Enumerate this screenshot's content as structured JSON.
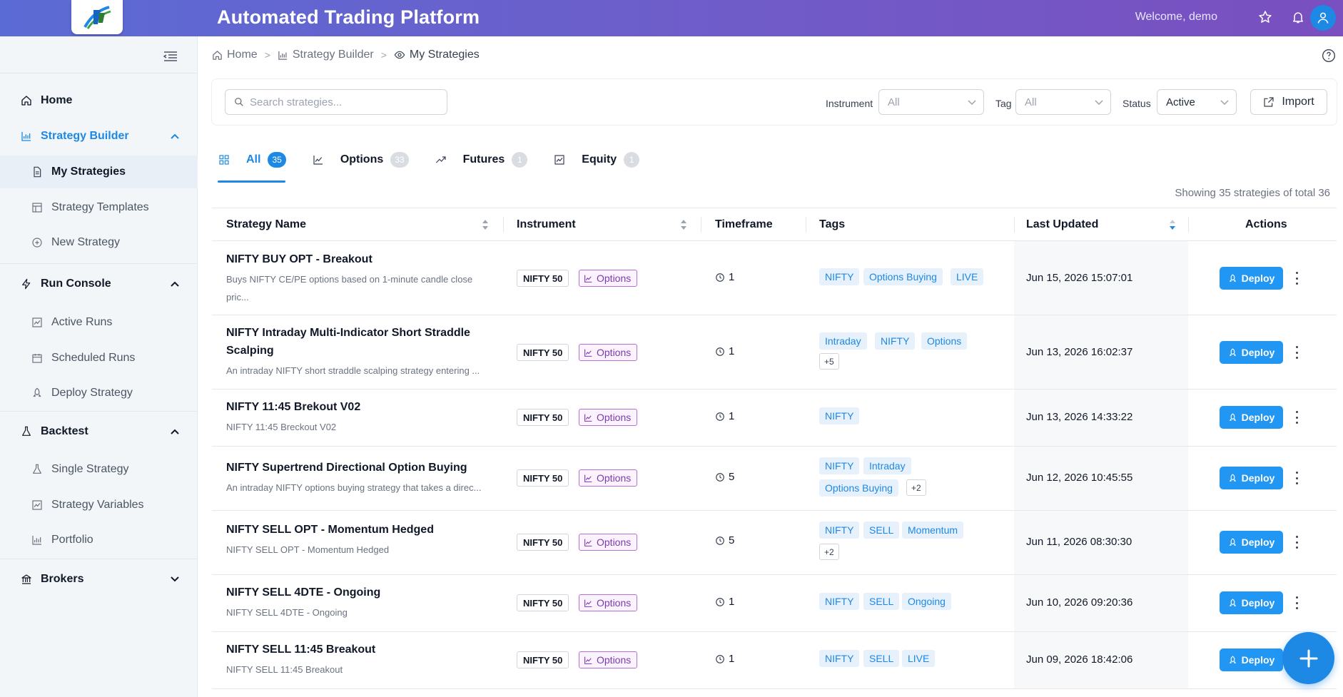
{
  "app": {
    "title": "Automated Trading Platform",
    "welcome": "Welcome, demo"
  },
  "colors": {
    "accent": "#1e88e5",
    "header_start": "#5b6bd5",
    "header_end": "#7a4fbf",
    "options_purple": "#7c3aad"
  },
  "sidebar": {
    "home": "Home",
    "strategy_builder": {
      "label": "Strategy Builder",
      "items": [
        "My Strategies",
        "Strategy Templates",
        "New Strategy"
      ]
    },
    "run_console": {
      "label": "Run Console",
      "items": [
        "Active Runs",
        "Scheduled Runs",
        "Deploy Strategy"
      ]
    },
    "backtest": {
      "label": "Backtest",
      "items": [
        "Single Strategy",
        "Strategy Variables",
        "Portfolio"
      ]
    },
    "brokers": "Brokers"
  },
  "breadcrumb": {
    "home": "Home",
    "builder": "Strategy Builder",
    "current": "My Strategies"
  },
  "filters": {
    "search_placeholder": "Search strategies...",
    "instrument_label": "Instrument",
    "instrument_value": "All",
    "tag_label": "Tag",
    "tag_value": "All",
    "status_label": "Status",
    "status_value": "Active",
    "import_label": "Import"
  },
  "tabs": [
    {
      "label": "All",
      "count": "35"
    },
    {
      "label": "Options",
      "count": "33"
    },
    {
      "label": "Futures",
      "count": "1"
    },
    {
      "label": "Equity",
      "count": "1"
    }
  ],
  "summary": "Showing 35 strategies of total 36",
  "table": {
    "headers": {
      "name": "Strategy Name",
      "instrument": "Instrument",
      "timeframe": "Timeframe",
      "tags": "Tags",
      "updated": "Last Updated",
      "actions": "Actions"
    },
    "deploy_label": "Deploy",
    "instrument": "NIFTY 50",
    "type": "Options",
    "rows": [
      {
        "name": "NIFTY BUY OPT - Breakout",
        "desc1": "Buys NIFTY CE/PE options based on 1-minute candle close",
        "desc2": "pric...",
        "tf": "1",
        "tags": [
          "NIFTY",
          "Options Buying",
          "LIVE"
        ],
        "more": "",
        "updated": "Jun 15, 2026 15:07:01"
      },
      {
        "name1": "NIFTY Intraday Multi-Indicator Short Straddle",
        "name2": "Scalping",
        "desc1": "An intraday NIFTY short straddle scalping strategy entering ...",
        "tf": "1",
        "tags": [
          "Intraday",
          "NIFTY",
          "Options"
        ],
        "more": "+5",
        "updated": "Jun 13, 2026 16:02:37"
      },
      {
        "name": "NIFTY 11:45 Brekout V02",
        "desc1": "NIFTY 11:45 Breckout V02",
        "tf": "1",
        "tags": [
          "NIFTY"
        ],
        "more": "",
        "updated": "Jun 13, 2026 14:33:22"
      },
      {
        "name": "NIFTY Supertrend Directional Option Buying",
        "desc1": "An intraday NIFTY options buying strategy that takes a direc...",
        "tf": "5",
        "tags": [
          "NIFTY",
          "Intraday",
          "Options Buying"
        ],
        "more": "+2",
        "updated": "Jun 12, 2026 10:45:55"
      },
      {
        "name": "NIFTY SELL OPT - Momentum Hedged",
        "desc1": "NIFTY SELL OPT - Momentum Hedged",
        "tf": "5",
        "tags": [
          "NIFTY",
          "SELL",
          "Momentum"
        ],
        "more": "+2",
        "updated": "Jun 11, 2026 08:30:30"
      },
      {
        "name": "NIFTY SELL 4DTE - Ongoing",
        "desc1": "NIFTY SELL 4DTE - Ongoing",
        "tf": "1",
        "tags": [
          "NIFTY",
          "SELL",
          "Ongoing"
        ],
        "more": "",
        "updated": "Jun 10, 2026 09:20:36"
      },
      {
        "name": "NIFTY SELL 11:45 Breakout",
        "desc1": "NIFTY SELL 11:45 Breakout",
        "tf": "1",
        "tags": [
          "NIFTY",
          "SELL",
          "LIVE"
        ],
        "more": "",
        "updated": "Jun 09, 2026 18:42:06"
      }
    ]
  }
}
